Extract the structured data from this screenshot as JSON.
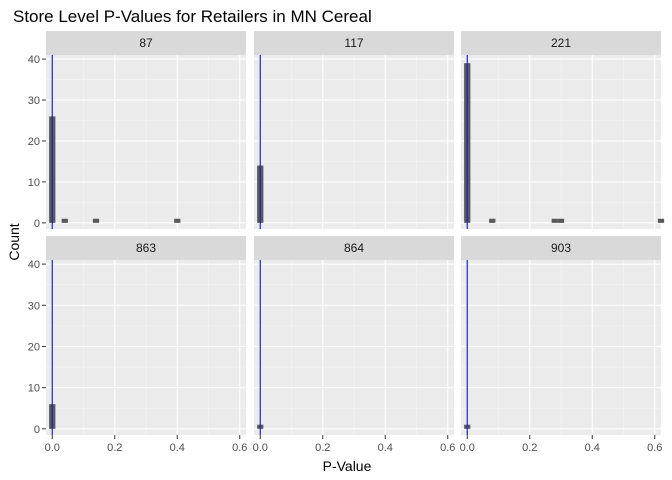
{
  "chart_data": {
    "type": "bar",
    "title": "Store Level P-Values for Retailers in MN Cereal",
    "xlabel": "P-Value",
    "ylabel": "Count",
    "xlim": [
      -0.02,
      0.62
    ],
    "ylim": [
      -1.5,
      41
    ],
    "x_ticks": [
      0,
      0.2,
      0.4,
      0.6
    ],
    "x_tick_labels": [
      "0.0",
      "0.2",
      "0.4",
      "0.6"
    ],
    "y_ticks": [
      0,
      10,
      20,
      30,
      40
    ],
    "y_tick_labels": [
      "0",
      "10",
      "20",
      "30",
      "40"
    ],
    "grid": true,
    "reference_line_x": 0,
    "bin_width": 0.02,
    "colors": {
      "panel_bg": "#ebebeb",
      "grid_major": "#ffffff",
      "grid_minor": "#f5f5f5",
      "strip_bg": "#d9d9d9",
      "bar_fill": "#595959",
      "reference_line": "#1f1fd1"
    },
    "facets": [
      {
        "label": "87",
        "bins": [
          {
            "x": 0.0,
            "count": 26
          },
          {
            "x": 0.04,
            "count": 1
          },
          {
            "x": 0.14,
            "count": 1
          },
          {
            "x": 0.4,
            "count": 1
          }
        ]
      },
      {
        "label": "117",
        "bins": [
          {
            "x": 0.0,
            "count": 14
          }
        ]
      },
      {
        "label": "221",
        "bins": [
          {
            "x": 0.0,
            "count": 39
          },
          {
            "x": 0.08,
            "count": 1
          },
          {
            "x": 0.28,
            "count": 1
          },
          {
            "x": 0.3,
            "count": 1
          },
          {
            "x": 0.62,
            "count": 1
          }
        ]
      },
      {
        "label": "863",
        "bins": [
          {
            "x": 0.0,
            "count": 6
          }
        ]
      },
      {
        "label": "864",
        "bins": [
          {
            "x": 0.0,
            "count": 1
          }
        ]
      },
      {
        "label": "903",
        "bins": [
          {
            "x": 0.0,
            "count": 1
          }
        ]
      }
    ]
  }
}
